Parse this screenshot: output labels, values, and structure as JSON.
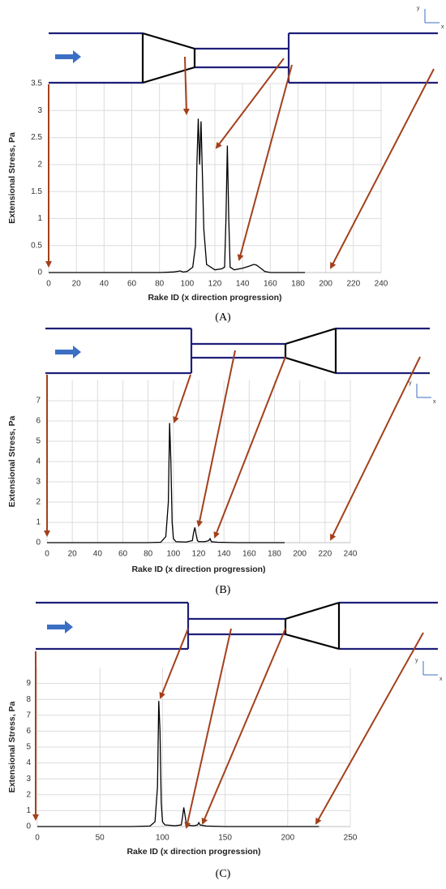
{
  "chart_data": [
    {
      "type": "line",
      "caption": "(A)",
      "x_label": "Rake ID (x direction progression)",
      "y_label": "Extensional Stress, Pa",
      "axis_icon_labels": [
        "y",
        "x"
      ],
      "x": [
        0,
        20,
        40,
        60,
        80,
        90,
        95,
        97,
        100,
        104,
        106,
        107,
        108,
        109,
        110,
        111,
        112,
        114,
        120,
        125,
        127,
        128,
        129,
        130,
        131,
        134,
        140,
        145,
        148,
        150,
        153,
        156,
        160,
        170,
        185
      ],
      "values": [
        0,
        0,
        0,
        0,
        0,
        0.01,
        0.03,
        0.01,
        0.02,
        0.1,
        0.5,
        2.0,
        2.85,
        2.0,
        2.8,
        1.8,
        0.8,
        0.15,
        0.05,
        0.07,
        0.1,
        1.0,
        2.35,
        1.0,
        0.1,
        0.05,
        0.08,
        0.12,
        0.15,
        0.14,
        0.08,
        0.02,
        0,
        0,
        0
      ],
      "color": "#000000",
      "xlim": [
        0,
        240
      ],
      "xticks": [
        0,
        20,
        40,
        60,
        80,
        100,
        120,
        140,
        160,
        180,
        200,
        220,
        240
      ],
      "ylim": [
        0,
        3.5
      ],
      "yticks": [
        0,
        0.5,
        1,
        1.5,
        2,
        2.5,
        3,
        3.5
      ],
      "grid": true
    },
    {
      "type": "line",
      "caption": "(B)",
      "x_label": "Rake ID (x direction progression)",
      "y_label": "Extensional Stress, Pa",
      "axis_icon_labels": [
        "y",
        "x"
      ],
      "x": [
        0,
        20,
        40,
        60,
        80,
        90,
        94,
        96,
        97,
        98,
        99,
        100,
        102,
        110,
        115,
        116,
        117,
        118,
        119,
        120,
        125,
        128,
        129,
        130,
        135,
        150,
        170,
        188
      ],
      "values": [
        0,
        0,
        0,
        0,
        0,
        0.02,
        0.3,
        2.0,
        5.9,
        4.0,
        1.0,
        0.2,
        0.05,
        0.03,
        0.1,
        0.5,
        0.75,
        0.4,
        0.1,
        0.05,
        0.05,
        0.1,
        0.2,
        0.05,
        0.02,
        0,
        0,
        0
      ],
      "color": "#000000",
      "xlim": [
        0,
        240
      ],
      "xticks": [
        0,
        20,
        40,
        60,
        80,
        100,
        120,
        140,
        160,
        180,
        200,
        220,
        240
      ],
      "ylim": [
        0,
        8
      ],
      "yticks": [
        0,
        1,
        2,
        3,
        4,
        5,
        6,
        7
      ],
      "grid": true
    },
    {
      "type": "line",
      "caption": "(C)",
      "x_label": "Rake ID (x direction progression)",
      "y_label": "Extensional Stress, Pa",
      "axis_icon_labels": [
        "y",
        "x"
      ],
      "x": [
        0,
        25,
        50,
        75,
        90,
        94,
        96,
        97,
        98,
        99,
        100,
        102,
        110,
        115,
        116,
        117,
        118,
        119,
        120,
        125,
        128,
        129,
        130,
        135,
        150,
        200,
        225
      ],
      "values": [
        0,
        0,
        0,
        0,
        0.03,
        0.3,
        2.5,
        7.9,
        6.0,
        1.5,
        0.3,
        0.1,
        0.05,
        0.1,
        0.6,
        1.2,
        0.7,
        0.2,
        0.08,
        0.05,
        0.1,
        0.25,
        0.1,
        0.03,
        0,
        0,
        0
      ],
      "color": "#000000",
      "xlim": [
        0,
        250
      ],
      "xticks": [
        0,
        50,
        100,
        150,
        200,
        250
      ],
      "ylim": [
        0,
        10
      ],
      "yticks": [
        0,
        1,
        2,
        3,
        4,
        5,
        6,
        7,
        8,
        9
      ],
      "grid": true
    }
  ]
}
